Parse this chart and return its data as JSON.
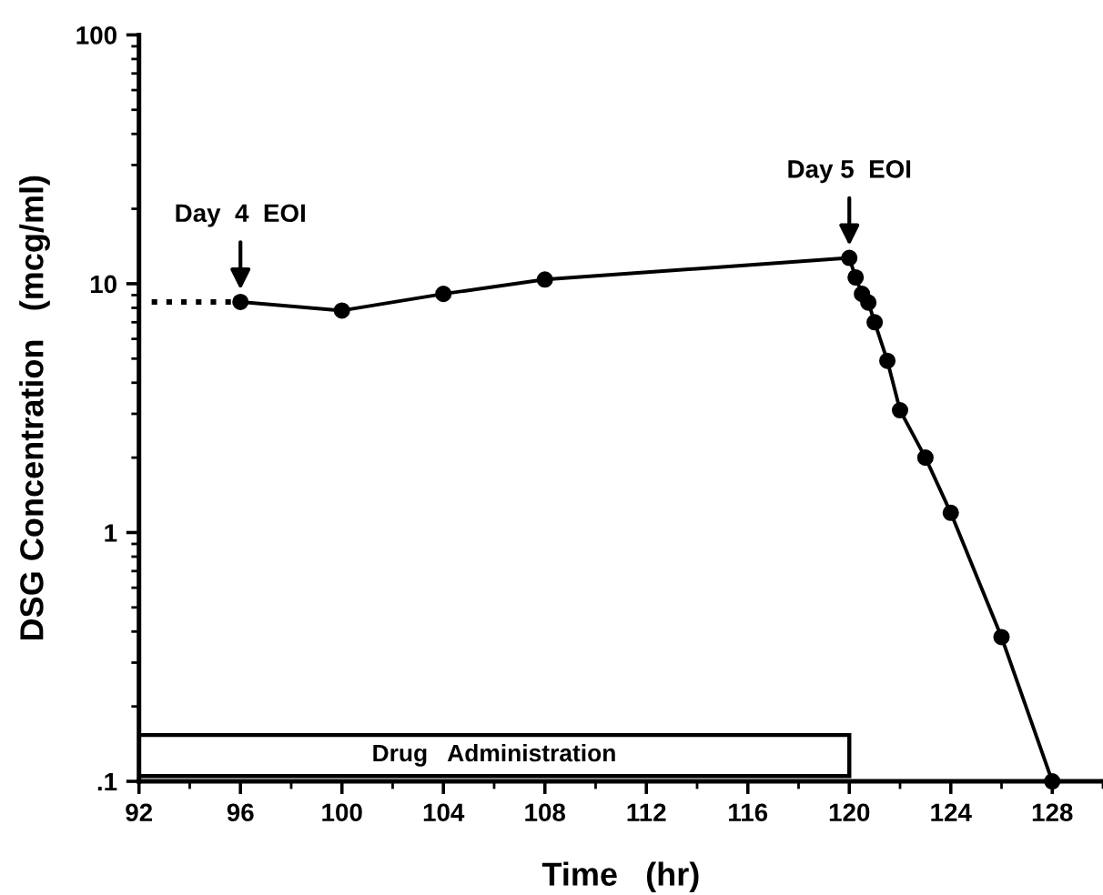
{
  "chart_data": {
    "type": "line",
    "xlabel": "Time   (hr)",
    "ylabel": "DSG Concentration   (mcg/ml)",
    "series": [
      {
        "color": "#000000",
        "marker": "circle",
        "line_style": "solid",
        "x": [
          96,
          100,
          104,
          108,
          120,
          120.25,
          120.5,
          120.75,
          121,
          121.5,
          122,
          123,
          124,
          126,
          128
        ],
        "values": [
          8.45,
          7.8,
          9.1,
          10.4,
          12.7,
          10.6,
          9.1,
          8.4,
          7.0,
          4.9,
          3.1,
          2.0,
          1.2,
          0.38,
          0.1
        ]
      },
      {
        "color": "#000000",
        "marker": "none",
        "line_style": "dotted",
        "x": [
          92.5,
          96
        ],
        "values": [
          8.45,
          8.45
        ]
      }
    ],
    "log": "y",
    "xlim": [
      92,
      130
    ],
    "xticks": [
      92,
      {
        "value": 94,
        "label": null
      },
      96,
      {
        "value": 98,
        "label": null
      },
      100,
      {
        "value": 102,
        "label": null
      },
      104,
      {
        "value": 106,
        "label": null
      },
      108,
      {
        "value": 110,
        "label": null
      },
      112,
      {
        "value": 114,
        "label": null
      },
      116,
      {
        "value": 118,
        "label": null
      },
      120,
      {
        "value": 122,
        "label": null
      },
      124,
      {
        "value": 126,
        "label": null
      },
      128,
      {
        "value": 130,
        "label": null
      }
    ],
    "ylim": [
      0.1,
      100
    ],
    "yticks": [
      {
        "value": 0.1,
        "label": ".1"
      },
      1,
      10,
      100
    ],
    "bands": [
      {
        "axis": "x",
        "from": 92,
        "to": 120,
        "label": "Drug   Administration"
      }
    ],
    "annotations": [
      {
        "text": "Day  4  EOI",
        "x": 96,
        "y": 8.45
      },
      {
        "text": "Day 5  EOI",
        "x": 120,
        "y": 12.7
      }
    ],
    "grid": false,
    "legend": false
  }
}
